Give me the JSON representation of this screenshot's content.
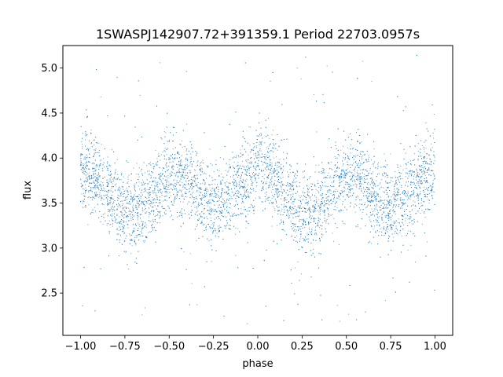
{
  "chart_data": {
    "type": "scatter",
    "title": "1SWASPJ142907.72+391359.1 Period 22703.0957s",
    "xlabel": "phase",
    "ylabel": "flux",
    "xlim": [
      -1.1,
      1.1
    ],
    "ylim": [
      2.03,
      5.25
    ],
    "x_ticks": [
      -1.0,
      -0.75,
      -0.5,
      -0.25,
      0.0,
      0.25,
      0.5,
      0.75,
      1.0
    ],
    "x_tick_labels": [
      "−1.00",
      "−0.75",
      "−0.50",
      "−0.25",
      "0.00",
      "0.25",
      "0.50",
      "0.75",
      "1.00"
    ],
    "y_ticks": [
      2.5,
      3.0,
      3.5,
      4.0,
      4.5,
      5.0
    ],
    "y_tick_labels": [
      "2.5",
      "3.0",
      "3.5",
      "4.0",
      "4.5",
      "5.0"
    ],
    "grid": false,
    "marker_color": "#1f77b4",
    "series": [
      {
        "x_range": [
          -1.0,
          1.0
        ],
        "mean_curve": {
          "x": [
            -1.0,
            -0.9,
            -0.8,
            -0.75,
            -0.7,
            -0.6,
            -0.5,
            -0.4,
            -0.3,
            -0.25,
            -0.2,
            -0.1,
            0.0,
            0.1,
            0.2,
            0.25,
            0.3,
            0.4,
            0.5,
            0.6,
            0.7,
            0.75,
            0.8,
            0.9,
            1.0
          ],
          "y": [
            3.85,
            3.78,
            3.5,
            3.42,
            3.4,
            3.55,
            3.8,
            3.78,
            3.55,
            3.45,
            3.5,
            3.72,
            3.88,
            3.75,
            3.45,
            3.4,
            3.42,
            3.6,
            3.8,
            3.75,
            3.45,
            3.45,
            3.52,
            3.7,
            3.88
          ]
        },
        "scatter_sd": 0.22,
        "outlier_range": [
          2.15,
          5.15
        ]
      }
    ]
  }
}
